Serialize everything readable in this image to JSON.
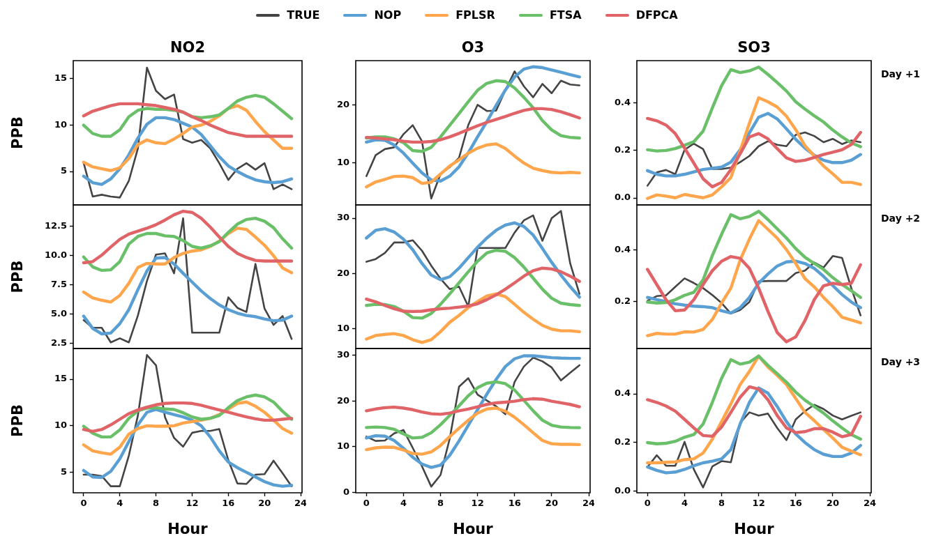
{
  "chart_data": [
    {
      "type": "line",
      "title": "NO2",
      "ylabel": "PPB",
      "legend": "top",
      "marker": "none",
      "grid": false,
      "tick_labels": "y",
      "x": [
        0,
        1,
        2,
        3,
        4,
        5,
        6,
        7,
        8,
        9,
        10,
        11,
        12,
        13,
        14,
        15,
        16,
        17,
        18,
        19,
        20,
        21,
        22,
        23
      ],
      "xlim": [
        -1.15,
        24.15
      ],
      "xticks": [
        0,
        4,
        8,
        12,
        16,
        20,
        24
      ],
      "ylim": [
        1.4,
        16.95
      ],
      "yticks": [
        5,
        10,
        15
      ],
      "series": [
        {
          "name": "TRUE",
          "color": "#444444",
          "values": [
            5.94,
            2.3,
            2.5,
            2.3,
            2.2,
            4.0,
            7.5,
            16.2,
            13.7,
            12.8,
            13.3,
            8.5,
            8.1,
            8.4,
            7.5,
            5.9,
            4.1,
            5.3,
            5.9,
            5.2,
            5.9,
            3.1,
            3.6,
            3.1
          ]
        },
        {
          "name": "NOP",
          "color": "#5a9fd4",
          "values": [
            4.5,
            3.8,
            3.6,
            4.2,
            5.3,
            6.8,
            8.6,
            10.1,
            10.8,
            10.8,
            10.6,
            10.2,
            9.8,
            9.0,
            7.8,
            6.6,
            5.6,
            5.0,
            4.5,
            4.1,
            3.9,
            3.8,
            3.9,
            4.2
          ]
        },
        {
          "name": "FPLSR",
          "color": "#ffa64d",
          "values": [
            6.0,
            5.5,
            5.3,
            5.1,
            5.4,
            6.4,
            7.9,
            8.4,
            8.1,
            8.0,
            8.5,
            9.1,
            9.8,
            10.0,
            10.4,
            11.0,
            11.8,
            12.1,
            11.6,
            10.4,
            9.3,
            8.4,
            7.5,
            7.5
          ]
        },
        {
          "name": "FTSA",
          "color": "#6abf69",
          "values": [
            10.0,
            9.1,
            8.8,
            8.8,
            9.5,
            10.9,
            11.6,
            11.8,
            11.7,
            11.7,
            11.6,
            11.4,
            10.9,
            10.8,
            10.9,
            11.1,
            11.8,
            12.6,
            13.0,
            13.2,
            13.0,
            12.3,
            11.5,
            10.7
          ]
        },
        {
          "name": "DFPCA",
          "color": "#e06467",
          "values": [
            11.0,
            11.5,
            11.8,
            12.1,
            12.3,
            12.3,
            12.3,
            12.2,
            12.1,
            11.9,
            11.7,
            11.4,
            10.9,
            10.5,
            10.0,
            9.6,
            9.2,
            9.0,
            8.8,
            8.8,
            8.8,
            8.8,
            8.8,
            8.8
          ]
        }
      ]
    },
    {
      "type": "line",
      "title": "O3",
      "marker": "none",
      "grid": false,
      "tick_labels": "y",
      "x": [
        0,
        1,
        2,
        3,
        4,
        5,
        6,
        7,
        8,
        9,
        10,
        11,
        12,
        13,
        14,
        15,
        16,
        17,
        18,
        19,
        20,
        21,
        22,
        23
      ],
      "xlim": [
        -1.15,
        24.15
      ],
      "xticks": [
        0,
        4,
        8,
        12,
        16,
        20,
        24
      ],
      "ylim": [
        2.8,
        27.6
      ],
      "yticks": [
        10,
        20
      ],
      "series": [
        {
          "color": "#444444",
          "values": [
            7.75,
            11.35,
            12.4,
            12.7,
            14.95,
            16.5,
            13.75,
            3.9,
            8.1,
            9.3,
            10.9,
            16.55,
            20.0,
            18.95,
            19.0,
            22.5,
            25.75,
            23.2,
            21.3,
            23.6,
            22.0,
            24.15,
            23.5,
            23.35
          ]
        },
        {
          "color": "#5a9fd4",
          "values": [
            13.6,
            14.0,
            13.9,
            13.1,
            11.7,
            10.0,
            8.3,
            7.1,
            6.9,
            7.75,
            9.35,
            11.75,
            14.5,
            17.1,
            19.9,
            22.55,
            24.8,
            26.15,
            26.55,
            26.4,
            26.0,
            25.6,
            25.2,
            24.8
          ]
        },
        {
          "color": "#ffa64d",
          "values": [
            5.9,
            6.75,
            7.2,
            7.7,
            7.75,
            7.5,
            6.5,
            6.7,
            8.1,
            9.5,
            10.55,
            11.7,
            12.55,
            13.1,
            13.3,
            12.5,
            11.2,
            10.0,
            9.1,
            8.7,
            8.4,
            8.3,
            8.4,
            8.3
          ]
        },
        {
          "color": "#6abf69",
          "values": [
            14.3,
            14.5,
            14.5,
            14.15,
            13.5,
            12.15,
            12.0,
            12.7,
            14.5,
            16.5,
            18.5,
            20.55,
            22.5,
            23.7,
            24.15,
            24.0,
            22.9,
            21.3,
            19.5,
            17.3,
            15.7,
            14.7,
            14.4,
            14.3
          ]
        },
        {
          "color": "#e06467",
          "values": [
            14.4,
            14.3,
            14.15,
            14.0,
            13.75,
            13.6,
            13.6,
            13.7,
            14.0,
            14.5,
            15.1,
            15.75,
            16.4,
            17.0,
            17.5,
            18.0,
            18.55,
            19.05,
            19.35,
            19.35,
            19.2,
            18.8,
            18.3,
            17.75
          ]
        }
      ]
    },
    {
      "type": "line",
      "title": "SO3",
      "annotations": [
        "Day +1"
      ],
      "marker": "none",
      "grid": false,
      "tick_labels": "y",
      "x": [
        0,
        1,
        2,
        3,
        4,
        5,
        6,
        7,
        8,
        9,
        10,
        11,
        12,
        13,
        14,
        15,
        16,
        17,
        18,
        19,
        20,
        21,
        22,
        23
      ],
      "xlim": [
        -1.15,
        24.15
      ],
      "xticks": [
        0,
        4,
        8,
        12,
        16,
        20,
        24
      ],
      "ylim": [
        -0.029,
        0.578
      ],
      "yticks": [
        {
          "value": 0,
          "label": "0.0"
        },
        {
          "value": 0.2,
          "label": "0.2"
        },
        {
          "value": 0.4,
          "label": "0.4"
        }
      ],
      "series": [
        {
          "color": "#444444",
          "values": [
            0.052,
            0.108,
            0.118,
            0.1,
            0.203,
            0.229,
            0.206,
            0.122,
            0.122,
            0.128,
            0.151,
            0.177,
            0.218,
            0.239,
            0.224,
            0.218,
            0.266,
            0.276,
            0.261,
            0.235,
            0.249,
            0.227,
            0.242,
            0.235
          ]
        },
        {
          "color": "#5a9fd4",
          "values": [
            0.115,
            0.1,
            0.093,
            0.093,
            0.1,
            0.11,
            0.12,
            0.125,
            0.13,
            0.151,
            0.203,
            0.274,
            0.34,
            0.356,
            0.333,
            0.291,
            0.247,
            0.21,
            0.18,
            0.159,
            0.149,
            0.149,
            0.159,
            0.183
          ]
        },
        {
          "color": "#ffa64d",
          "values": [
            -0.002,
            0.013,
            0.008,
            0.001,
            0.015,
            0.008,
            0.001,
            0.013,
            0.047,
            0.086,
            0.198,
            0.315,
            0.422,
            0.405,
            0.383,
            0.344,
            0.288,
            0.22,
            0.177,
            0.135,
            0.102,
            0.066,
            0.066,
            0.057
          ]
        },
        {
          "color": "#6abf69",
          "values": [
            0.203,
            0.198,
            0.2,
            0.208,
            0.222,
            0.237,
            0.281,
            0.379,
            0.473,
            0.54,
            0.528,
            0.535,
            0.551,
            0.52,
            0.486,
            0.45,
            0.405,
            0.374,
            0.346,
            0.32,
            0.286,
            0.257,
            0.232,
            0.216
          ]
        },
        {
          "color": "#e06467",
          "values": [
            0.335,
            0.325,
            0.307,
            0.271,
            0.21,
            0.147,
            0.081,
            0.047,
            0.066,
            0.12,
            0.186,
            0.257,
            0.271,
            0.249,
            0.208,
            0.169,
            0.154,
            0.159,
            0.171,
            0.183,
            0.193,
            0.203,
            0.225,
            0.276
          ]
        }
      ]
    },
    {
      "type": "line",
      "ylabel": "PPB",
      "marker": "none",
      "grid": false,
      "tick_labels": "y",
      "x": [
        0,
        1,
        2,
        3,
        4,
        5,
        6,
        7,
        8,
        9,
        10,
        11,
        12,
        13,
        14,
        15,
        16,
        17,
        18,
        19,
        20,
        21,
        22,
        23
      ],
      "xlim": [
        -1.15,
        24.15
      ],
      "xticks": [
        0,
        4,
        8,
        12,
        16,
        20,
        24
      ],
      "ylim": [
        2.08,
        14.34
      ],
      "yticks": [
        {
          "value": 2.5,
          "label": "2.5"
        },
        {
          "value": 5,
          "label": "5.0"
        },
        {
          "value": 7.5,
          "label": "7.5"
        },
        {
          "value": 10,
          "label": "10.0"
        },
        {
          "value": 12.5,
          "label": "12.5"
        }
      ],
      "series": [
        {
          "color": "#444444",
          "values": [
            4.5,
            3.85,
            3.85,
            2.6,
            2.95,
            2.6,
            4.9,
            7.85,
            10.1,
            10.2,
            8.5,
            13.2,
            3.43,
            3.43,
            3.43,
            3.43,
            6.45,
            5.55,
            5.2,
            9.3,
            5.5,
            4.1,
            4.85,
            2.9
          ]
        },
        {
          "color": "#5a9fd4",
          "values": [
            4.85,
            3.8,
            3.33,
            3.4,
            4.2,
            5.4,
            7.1,
            8.7,
            9.8,
            9.85,
            9.3,
            8.5,
            7.75,
            7.0,
            6.35,
            5.8,
            5.4,
            5.1,
            4.9,
            4.8,
            4.6,
            4.45,
            4.5,
            4.85
          ]
        },
        {
          "color": "#ffa64d",
          "values": [
            6.9,
            6.4,
            6.2,
            6.05,
            6.6,
            7.65,
            9.0,
            9.35,
            9.3,
            9.3,
            9.85,
            10.2,
            10.4,
            10.5,
            10.8,
            11.25,
            11.9,
            12.35,
            12.25,
            11.6,
            10.9,
            10.0,
            8.95,
            8.55
          ]
        },
        {
          "color": "#6abf69",
          "values": [
            9.9,
            9.05,
            8.75,
            8.8,
            9.5,
            11.0,
            11.65,
            11.9,
            11.9,
            11.7,
            11.65,
            11.3,
            10.8,
            10.65,
            10.85,
            11.2,
            12.0,
            12.7,
            13.1,
            13.2,
            12.95,
            12.4,
            11.45,
            10.65
          ]
        },
        {
          "color": "#e06467",
          "values": [
            9.4,
            9.5,
            10.05,
            10.75,
            11.4,
            11.85,
            12.1,
            12.35,
            12.65,
            13.05,
            13.5,
            13.8,
            13.7,
            13.2,
            12.45,
            11.6,
            10.8,
            10.2,
            9.85,
            9.6,
            9.55,
            9.55,
            9.55,
            9.55
          ]
        }
      ]
    },
    {
      "type": "line",
      "marker": "none",
      "grid": false,
      "tick_labels": "y",
      "x": [
        0,
        1,
        2,
        3,
        4,
        5,
        6,
        7,
        8,
        9,
        10,
        11,
        12,
        13,
        14,
        15,
        16,
        17,
        18,
        19,
        20,
        21,
        22,
        23
      ],
      "xlim": [
        -1.15,
        24.15
      ],
      "xticks": [
        0,
        4,
        8,
        12,
        16,
        20,
        24
      ],
      "ylim": [
        6.4,
        32.4
      ],
      "yticks": [
        10,
        20,
        30
      ],
      "series": [
        {
          "color": "#444444",
          "values": [
            22.1,
            22.6,
            23.7,
            25.6,
            25.6,
            26.0,
            24.1,
            21.4,
            19.05,
            17.15,
            17.6,
            14.0,
            24.6,
            24.6,
            24.6,
            24.6,
            27.4,
            29.6,
            30.5,
            25.9,
            30.0,
            31.3,
            21.8,
            16.3
          ]
        },
        {
          "color": "#5a9fd4",
          "values": [
            26.4,
            27.8,
            28.1,
            27.5,
            26.2,
            24.3,
            21.8,
            19.7,
            18.85,
            19.4,
            20.95,
            22.85,
            24.75,
            26.4,
            27.8,
            28.75,
            29.15,
            28.5,
            26.95,
            24.5,
            22.0,
            19.7,
            17.6,
            15.7
          ]
        },
        {
          "color": "#ffa64d",
          "values": [
            8.1,
            8.75,
            8.95,
            9.1,
            8.75,
            8.0,
            7.5,
            8.0,
            9.45,
            11.15,
            12.4,
            13.8,
            14.9,
            15.9,
            16.3,
            15.8,
            14.4,
            12.95,
            11.7,
            10.6,
            9.9,
            9.6,
            9.6,
            9.45
          ]
        },
        {
          "color": "#6abf69",
          "values": [
            14.2,
            14.4,
            14.35,
            14.0,
            13.15,
            12.0,
            11.9,
            12.75,
            14.4,
            16.3,
            18.3,
            20.3,
            22.2,
            23.7,
            24.2,
            24.0,
            22.85,
            21.15,
            19.15,
            17.15,
            15.5,
            14.6,
            14.35,
            14.2
          ]
        },
        {
          "color": "#e06467",
          "values": [
            15.35,
            14.85,
            14.2,
            13.6,
            13.15,
            13.1,
            13.15,
            13.4,
            13.6,
            13.7,
            13.9,
            14.1,
            14.5,
            15.25,
            16.1,
            17.15,
            18.3,
            19.5,
            20.5,
            20.95,
            20.8,
            20.3,
            19.5,
            18.55
          ]
        }
      ]
    },
    {
      "type": "line",
      "annotations": [
        "Day +2"
      ],
      "marker": "none",
      "grid": false,
      "tick_labels": "y",
      "x": [
        0,
        1,
        2,
        3,
        4,
        5,
        6,
        7,
        8,
        9,
        10,
        11,
        12,
        13,
        14,
        15,
        16,
        17,
        18,
        19,
        20,
        21,
        22,
        23
      ],
      "xlim": [
        -1.15,
        24.15
      ],
      "xticks": [
        0,
        4,
        8,
        12,
        16,
        20,
        24
      ],
      "ylim": [
        0.017,
        0.576
      ],
      "yticks": [
        {
          "value": 0.2,
          "label": "0.2"
        },
        {
          "value": 0.4,
          "label": "0.4"
        }
      ],
      "series": [
        {
          "color": "#444444",
          "values": [
            0.203,
            0.221,
            0.224,
            0.257,
            0.29,
            0.272,
            0.252,
            0.225,
            0.194,
            0.153,
            0.167,
            0.198,
            0.278,
            0.28,
            0.28,
            0.28,
            0.311,
            0.32,
            0.352,
            0.332,
            0.377,
            0.37,
            0.252,
            0.146
          ]
        },
        {
          "color": "#5a9fd4",
          "values": [
            0.216,
            0.207,
            0.2,
            0.191,
            0.186,
            0.182,
            0.18,
            0.176,
            0.164,
            0.155,
            0.176,
            0.216,
            0.271,
            0.307,
            0.338,
            0.354,
            0.357,
            0.348,
            0.329,
            0.298,
            0.262,
            0.227,
            0.198,
            0.176
          ]
        },
        {
          "color": "#ffa64d",
          "values": [
            0.067,
            0.076,
            0.073,
            0.073,
            0.082,
            0.081,
            0.091,
            0.13,
            0.194,
            0.252,
            0.361,
            0.443,
            0.515,
            0.481,
            0.447,
            0.402,
            0.348,
            0.289,
            0.257,
            0.216,
            0.18,
            0.139,
            0.128,
            0.117
          ]
        },
        {
          "color": "#6abf69",
          "values": [
            0.198,
            0.194,
            0.196,
            0.207,
            0.224,
            0.236,
            0.284,
            0.379,
            0.462,
            0.538,
            0.522,
            0.531,
            0.551,
            0.519,
            0.483,
            0.447,
            0.406,
            0.372,
            0.348,
            0.325,
            0.293,
            0.266,
            0.242,
            0.216
          ]
        },
        {
          "color": "#e06467",
          "values": [
            0.325,
            0.266,
            0.207,
            0.164,
            0.167,
            0.207,
            0.266,
            0.32,
            0.357,
            0.375,
            0.368,
            0.329,
            0.252,
            0.162,
            0.079,
            0.043,
            0.062,
            0.126,
            0.207,
            0.261,
            0.271,
            0.266,
            0.271,
            0.343
          ]
        }
      ]
    },
    {
      "type": "line",
      "ylabel": "PPB",
      "xlabel": "Hour",
      "marker": "none",
      "grid": false,
      "x": [
        0,
        1,
        2,
        3,
        4,
        5,
        6,
        7,
        8,
        9,
        10,
        11,
        12,
        13,
        14,
        15,
        16,
        17,
        18,
        19,
        20,
        21,
        22,
        23
      ],
      "xlim": [
        -1.15,
        24.15
      ],
      "xticks": [
        0,
        4,
        8,
        12,
        16,
        20,
        24
      ],
      "ylim": [
        2.8,
        18.3
      ],
      "yticks": [
        5,
        10,
        15
      ],
      "series": [
        {
          "color": "#444444",
          "values": [
            4.75,
            4.75,
            4.6,
            3.5,
            3.5,
            6.8,
            11.1,
            17.6,
            16.5,
            10.9,
            8.7,
            7.75,
            9.25,
            9.45,
            9.45,
            9.65,
            6.3,
            3.8,
            3.75,
            4.75,
            4.8,
            6.25,
            4.9,
            3.5
          ]
        },
        {
          "color": "#5a9fd4",
          "values": [
            5.2,
            4.5,
            4.45,
            5.1,
            6.45,
            8.3,
            10.1,
            11.45,
            11.75,
            11.45,
            11.2,
            10.95,
            10.6,
            10.0,
            8.8,
            7.3,
            6.1,
            5.5,
            5.0,
            4.5,
            4.0,
            3.65,
            3.5,
            3.6
          ]
        },
        {
          "color": "#ffa64d",
          "values": [
            7.95,
            7.3,
            7.1,
            6.95,
            7.7,
            9.1,
            9.7,
            10.0,
            9.95,
            9.95,
            10.0,
            10.3,
            10.45,
            10.6,
            10.8,
            11.2,
            11.8,
            12.4,
            12.55,
            12.1,
            11.45,
            10.6,
            9.7,
            9.2
          ]
        },
        {
          "color": "#6abf69",
          "values": [
            9.95,
            9.2,
            8.8,
            8.8,
            9.55,
            10.8,
            11.6,
            11.9,
            11.95,
            11.8,
            11.75,
            11.4,
            10.95,
            10.7,
            10.8,
            11.1,
            11.95,
            12.7,
            13.1,
            13.3,
            13.1,
            12.55,
            11.55,
            10.7
          ]
        },
        {
          "color": "#e06467",
          "values": [
            9.6,
            9.4,
            9.6,
            10.1,
            10.7,
            11.3,
            11.7,
            12.0,
            12.25,
            12.4,
            12.45,
            12.45,
            12.4,
            12.2,
            11.95,
            11.7,
            11.45,
            11.2,
            10.95,
            10.75,
            10.6,
            10.6,
            10.7,
            10.8
          ]
        }
      ]
    },
    {
      "type": "line",
      "xlabel": "Hour",
      "marker": "none",
      "grid": false,
      "x": [
        0,
        1,
        2,
        3,
        4,
        5,
        6,
        7,
        8,
        9,
        10,
        11,
        12,
        13,
        14,
        15,
        16,
        17,
        18,
        19,
        20,
        21,
        22,
        23
      ],
      "xlim": [
        -1.15,
        24.15
      ],
      "xticks": [
        0,
        4,
        8,
        12,
        16,
        20,
        24
      ],
      "ylim": [
        -0.1,
        31.5
      ],
      "yticks": [
        0,
        10,
        20,
        30
      ],
      "series": [
        {
          "color": "#444444",
          "values": [
            12.2,
            11.25,
            11.35,
            12.9,
            13.65,
            9.75,
            5.7,
            1.25,
            3.8,
            11.8,
            23.15,
            25.0,
            21.4,
            20.1,
            18.85,
            17.1,
            24.2,
            27.55,
            29.5,
            28.7,
            27.35,
            24.5,
            26.2,
            27.85
          ]
        },
        {
          "color": "#5a9fd4",
          "values": [
            11.9,
            12.4,
            12.3,
            11.35,
            9.65,
            7.7,
            6.2,
            5.45,
            5.95,
            8.1,
            11.25,
            14.7,
            18.1,
            21.5,
            24.7,
            27.55,
            29.25,
            29.9,
            29.9,
            29.7,
            29.5,
            29.4,
            29.35,
            29.35
          ]
        },
        {
          "color": "#ffa64d",
          "values": [
            9.35,
            9.75,
            9.9,
            9.85,
            9.25,
            8.5,
            8.35,
            8.85,
            10.25,
            12.2,
            14.05,
            15.8,
            17.35,
            18.25,
            18.45,
            17.75,
            16.45,
            14.8,
            13.05,
            11.35,
            10.65,
            10.5,
            10.5,
            10.45
          ]
        },
        {
          "color": "#6abf69",
          "values": [
            14.2,
            14.3,
            14.2,
            13.8,
            12.8,
            11.9,
            12.05,
            13.05,
            14.8,
            16.85,
            18.95,
            21.15,
            22.9,
            23.9,
            24.2,
            23.8,
            22.4,
            20.15,
            17.85,
            15.8,
            14.7,
            14.3,
            14.2,
            14.15
          ]
        },
        {
          "color": "#e06467",
          "values": [
            17.85,
            18.25,
            18.55,
            18.65,
            18.45,
            18.1,
            17.6,
            17.2,
            17.1,
            17.35,
            17.85,
            18.25,
            18.75,
            19.25,
            19.6,
            19.75,
            19.95,
            20.3,
            20.5,
            20.4,
            19.95,
            19.6,
            19.25,
            18.75
          ]
        }
      ]
    },
    {
      "type": "line",
      "xlabel": "Hour",
      "annotations": [
        "Day +3"
      ],
      "marker": "none",
      "grid": false,
      "x": [
        0,
        1,
        2,
        3,
        4,
        5,
        6,
        7,
        8,
        9,
        10,
        11,
        12,
        13,
        14,
        15,
        16,
        17,
        18,
        19,
        20,
        21,
        22,
        23
      ],
      "xlim": [
        -1.15,
        24.15
      ],
      "xticks": [
        0,
        4,
        8,
        12,
        16,
        20,
        24
      ],
      "ylim": [
        -0.006,
        0.586
      ],
      "yticks": [
        {
          "value": 0,
          "label": "0.0"
        },
        {
          "value": 0.2,
          "label": "0.2"
        },
        {
          "value": 0.4,
          "label": "0.4"
        }
      ],
      "series": [
        {
          "color": "#444444",
          "values": [
            0.1,
            0.148,
            0.105,
            0.105,
            0.203,
            0.09,
            0.016,
            0.102,
            0.124,
            0.119,
            0.281,
            0.324,
            0.311,
            0.319,
            0.26,
            0.21,
            0.295,
            0.329,
            0.355,
            0.338,
            0.311,
            0.295,
            0.31,
            0.324
          ]
        },
        {
          "color": "#5a9fd4",
          "values": [
            0.1,
            0.086,
            0.076,
            0.079,
            0.09,
            0.105,
            0.117,
            0.124,
            0.133,
            0.171,
            0.276,
            0.365,
            0.424,
            0.403,
            0.348,
            0.286,
            0.235,
            0.2,
            0.171,
            0.152,
            0.143,
            0.143,
            0.157,
            0.188
          ]
        },
        {
          "color": "#ffa64d",
          "values": [
            0.117,
            0.117,
            0.119,
            0.121,
            0.13,
            0.133,
            0.157,
            0.214,
            0.286,
            0.359,
            0.438,
            0.492,
            0.555,
            0.51,
            0.476,
            0.438,
            0.381,
            0.324,
            0.29,
            0.254,
            0.219,
            0.181,
            0.165,
            0.15
          ]
        },
        {
          "color": "#6abf69",
          "values": [
            0.2,
            0.195,
            0.197,
            0.205,
            0.222,
            0.233,
            0.276,
            0.365,
            0.464,
            0.54,
            0.522,
            0.53,
            0.555,
            0.517,
            0.483,
            0.448,
            0.407,
            0.374,
            0.348,
            0.321,
            0.289,
            0.26,
            0.233,
            0.214
          ]
        },
        {
          "color": "#e06467",
          "values": [
            0.376,
            0.365,
            0.35,
            0.329,
            0.295,
            0.26,
            0.229,
            0.226,
            0.264,
            0.324,
            0.386,
            0.429,
            0.419,
            0.376,
            0.311,
            0.26,
            0.241,
            0.245,
            0.257,
            0.257,
            0.243,
            0.224,
            0.233,
            0.308
          ]
        }
      ]
    }
  ]
}
